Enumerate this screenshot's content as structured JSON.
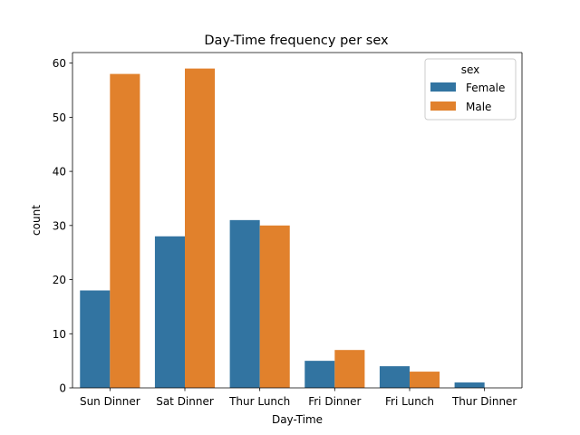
{
  "chart_data": {
    "type": "bar",
    "title": "Day-Time frequency per sex",
    "xlabel": "Day-Time",
    "ylabel": "count",
    "categories": [
      "Sun Dinner",
      "Sat Dinner",
      "Thur Lunch",
      "Fri Dinner",
      "Fri Lunch",
      "Thur Dinner"
    ],
    "series": [
      {
        "name": "Female",
        "color": "#3274a1",
        "values": [
          18,
          28,
          31,
          5,
          4,
          1
        ]
      },
      {
        "name": "Male",
        "color": "#e1812c",
        "values": [
          58,
          59,
          30,
          7,
          3,
          0
        ]
      }
    ],
    "yticks": [
      0,
      10,
      20,
      30,
      40,
      50,
      60
    ],
    "ylim": [
      0,
      61.95
    ],
    "grid": false,
    "legend": {
      "title": "sex",
      "placement": "top-right"
    }
  }
}
